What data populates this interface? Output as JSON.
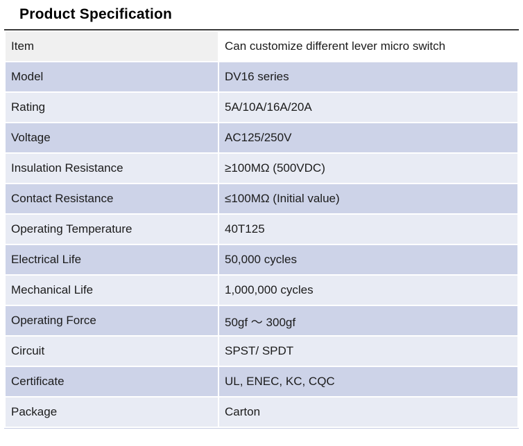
{
  "title": "Product Specification",
  "colors": {
    "row_dark": "#cdd3e8",
    "row_light": "#e8ebf4",
    "item_left": "#f0f0f0",
    "item_right": "#ffffff",
    "top_border": "#3a3a3a",
    "bottom_border": "#c6cce4"
  },
  "table": {
    "rows": [
      {
        "label": "Item",
        "value": "Can customize different lever micro switch"
      },
      {
        "label": "Model",
        "value": "DV16 series"
      },
      {
        "label": "Rating",
        "value": "5A/10A/16A/20A"
      },
      {
        "label": "Voltage",
        "value": "AC125/250V"
      },
      {
        "label": "Insulation Resistance",
        "value": "≥100MΩ (500VDC)"
      },
      {
        "label": "Contact Resistance",
        "value": "≤100MΩ (Initial value)"
      },
      {
        "label": "Operating Temperature",
        "value": "40T125"
      },
      {
        "label": "Electrical Life",
        "value": "50,000 cycles"
      },
      {
        "label": "Mechanical Life",
        "value": "1,000,000 cycles"
      },
      {
        "label": "Operating Force",
        "value": "50gf ～ 300gf"
      },
      {
        "label": "Circuit",
        "value": "SPST/ SPDT"
      },
      {
        "label": "Certificate",
        "value": "UL, ENEC, KC, CQC"
      },
      {
        "label": "Package",
        "value": "Carton"
      }
    ]
  }
}
